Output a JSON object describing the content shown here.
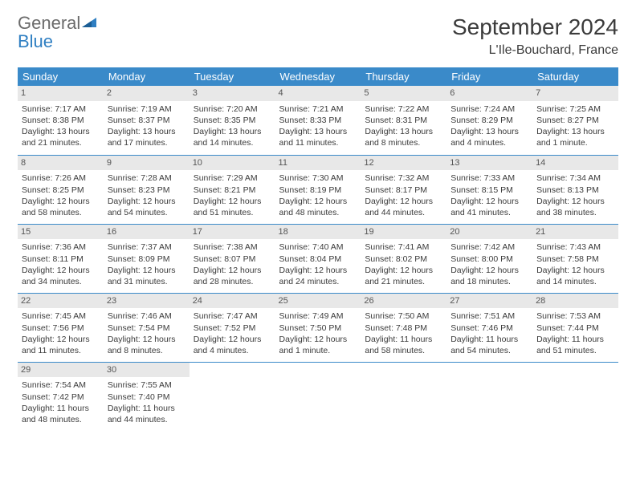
{
  "logo": {
    "general": "General",
    "blue": "Blue"
  },
  "title": "September 2024",
  "location": "L'Ile-Bouchard, France",
  "colors": {
    "header_bg": "#3a8ac9",
    "header_text": "#ffffff",
    "daynum_bg": "#e8e8e8",
    "text": "#3b3b3b",
    "logo_gray": "#6b6b6b",
    "logo_blue": "#2f7fc2"
  },
  "day_names": [
    "Sunday",
    "Monday",
    "Tuesday",
    "Wednesday",
    "Thursday",
    "Friday",
    "Saturday"
  ],
  "weeks": [
    [
      {
        "n": "1",
        "sr": "Sunrise: 7:17 AM",
        "ss": "Sunset: 8:38 PM",
        "dl": "Daylight: 13 hours and 21 minutes."
      },
      {
        "n": "2",
        "sr": "Sunrise: 7:19 AM",
        "ss": "Sunset: 8:37 PM",
        "dl": "Daylight: 13 hours and 17 minutes."
      },
      {
        "n": "3",
        "sr": "Sunrise: 7:20 AM",
        "ss": "Sunset: 8:35 PM",
        "dl": "Daylight: 13 hours and 14 minutes."
      },
      {
        "n": "4",
        "sr": "Sunrise: 7:21 AM",
        "ss": "Sunset: 8:33 PM",
        "dl": "Daylight: 13 hours and 11 minutes."
      },
      {
        "n": "5",
        "sr": "Sunrise: 7:22 AM",
        "ss": "Sunset: 8:31 PM",
        "dl": "Daylight: 13 hours and 8 minutes."
      },
      {
        "n": "6",
        "sr": "Sunrise: 7:24 AM",
        "ss": "Sunset: 8:29 PM",
        "dl": "Daylight: 13 hours and 4 minutes."
      },
      {
        "n": "7",
        "sr": "Sunrise: 7:25 AM",
        "ss": "Sunset: 8:27 PM",
        "dl": "Daylight: 13 hours and 1 minute."
      }
    ],
    [
      {
        "n": "8",
        "sr": "Sunrise: 7:26 AM",
        "ss": "Sunset: 8:25 PM",
        "dl": "Daylight: 12 hours and 58 minutes."
      },
      {
        "n": "9",
        "sr": "Sunrise: 7:28 AM",
        "ss": "Sunset: 8:23 PM",
        "dl": "Daylight: 12 hours and 54 minutes."
      },
      {
        "n": "10",
        "sr": "Sunrise: 7:29 AM",
        "ss": "Sunset: 8:21 PM",
        "dl": "Daylight: 12 hours and 51 minutes."
      },
      {
        "n": "11",
        "sr": "Sunrise: 7:30 AM",
        "ss": "Sunset: 8:19 PM",
        "dl": "Daylight: 12 hours and 48 minutes."
      },
      {
        "n": "12",
        "sr": "Sunrise: 7:32 AM",
        "ss": "Sunset: 8:17 PM",
        "dl": "Daylight: 12 hours and 44 minutes."
      },
      {
        "n": "13",
        "sr": "Sunrise: 7:33 AM",
        "ss": "Sunset: 8:15 PM",
        "dl": "Daylight: 12 hours and 41 minutes."
      },
      {
        "n": "14",
        "sr": "Sunrise: 7:34 AM",
        "ss": "Sunset: 8:13 PM",
        "dl": "Daylight: 12 hours and 38 minutes."
      }
    ],
    [
      {
        "n": "15",
        "sr": "Sunrise: 7:36 AM",
        "ss": "Sunset: 8:11 PM",
        "dl": "Daylight: 12 hours and 34 minutes."
      },
      {
        "n": "16",
        "sr": "Sunrise: 7:37 AM",
        "ss": "Sunset: 8:09 PM",
        "dl": "Daylight: 12 hours and 31 minutes."
      },
      {
        "n": "17",
        "sr": "Sunrise: 7:38 AM",
        "ss": "Sunset: 8:07 PM",
        "dl": "Daylight: 12 hours and 28 minutes."
      },
      {
        "n": "18",
        "sr": "Sunrise: 7:40 AM",
        "ss": "Sunset: 8:04 PM",
        "dl": "Daylight: 12 hours and 24 minutes."
      },
      {
        "n": "19",
        "sr": "Sunrise: 7:41 AM",
        "ss": "Sunset: 8:02 PM",
        "dl": "Daylight: 12 hours and 21 minutes."
      },
      {
        "n": "20",
        "sr": "Sunrise: 7:42 AM",
        "ss": "Sunset: 8:00 PM",
        "dl": "Daylight: 12 hours and 18 minutes."
      },
      {
        "n": "21",
        "sr": "Sunrise: 7:43 AM",
        "ss": "Sunset: 7:58 PM",
        "dl": "Daylight: 12 hours and 14 minutes."
      }
    ],
    [
      {
        "n": "22",
        "sr": "Sunrise: 7:45 AM",
        "ss": "Sunset: 7:56 PM",
        "dl": "Daylight: 12 hours and 11 minutes."
      },
      {
        "n": "23",
        "sr": "Sunrise: 7:46 AM",
        "ss": "Sunset: 7:54 PM",
        "dl": "Daylight: 12 hours and 8 minutes."
      },
      {
        "n": "24",
        "sr": "Sunrise: 7:47 AM",
        "ss": "Sunset: 7:52 PM",
        "dl": "Daylight: 12 hours and 4 minutes."
      },
      {
        "n": "25",
        "sr": "Sunrise: 7:49 AM",
        "ss": "Sunset: 7:50 PM",
        "dl": "Daylight: 12 hours and 1 minute."
      },
      {
        "n": "26",
        "sr": "Sunrise: 7:50 AM",
        "ss": "Sunset: 7:48 PM",
        "dl": "Daylight: 11 hours and 58 minutes."
      },
      {
        "n": "27",
        "sr": "Sunrise: 7:51 AM",
        "ss": "Sunset: 7:46 PM",
        "dl": "Daylight: 11 hours and 54 minutes."
      },
      {
        "n": "28",
        "sr": "Sunrise: 7:53 AM",
        "ss": "Sunset: 7:44 PM",
        "dl": "Daylight: 11 hours and 51 minutes."
      }
    ],
    [
      {
        "n": "29",
        "sr": "Sunrise: 7:54 AM",
        "ss": "Sunset: 7:42 PM",
        "dl": "Daylight: 11 hours and 48 minutes."
      },
      {
        "n": "30",
        "sr": "Sunrise: 7:55 AM",
        "ss": "Sunset: 7:40 PM",
        "dl": "Daylight: 11 hours and 44 minutes."
      },
      null,
      null,
      null,
      null,
      null
    ]
  ]
}
